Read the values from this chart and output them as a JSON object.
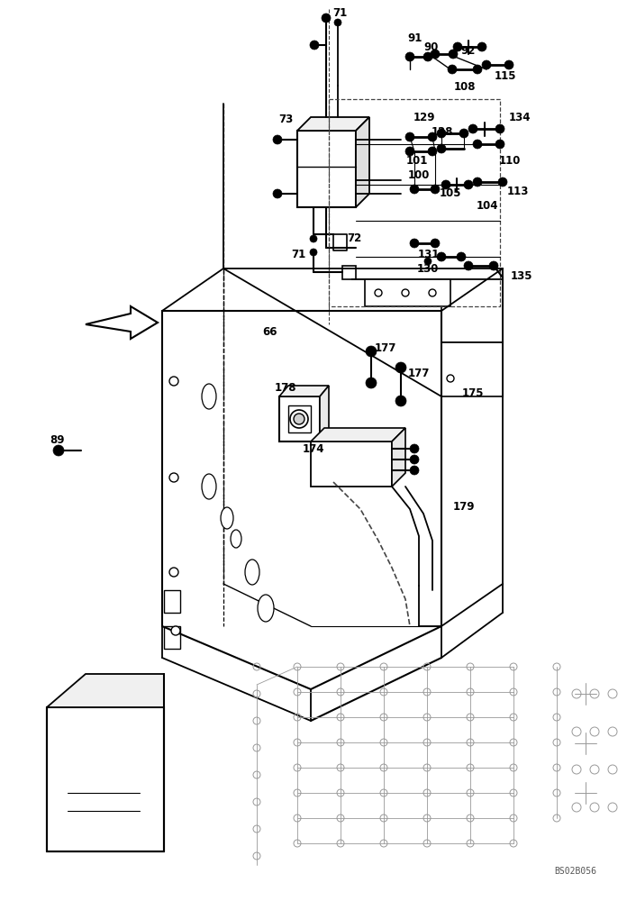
{
  "background_color": "#ffffff",
  "line_color": "#000000",
  "fig_width": 6.96,
  "fig_height": 10.0,
  "dpi": 100,
  "watermark": "BS02B056",
  "labels": [
    [
      369,
      15,
      "71"
    ],
    [
      452,
      42,
      "91"
    ],
    [
      470,
      53,
      "90"
    ],
    [
      511,
      57,
      "92"
    ],
    [
      549,
      85,
      "115"
    ],
    [
      504,
      97,
      "108"
    ],
    [
      309,
      133,
      "73"
    ],
    [
      459,
      131,
      "129"
    ],
    [
      479,
      147,
      "128"
    ],
    [
      565,
      131,
      "134"
    ],
    [
      451,
      179,
      "101"
    ],
    [
      453,
      194,
      "100"
    ],
    [
      554,
      179,
      "110"
    ],
    [
      488,
      214,
      "105"
    ],
    [
      529,
      228,
      "104"
    ],
    [
      563,
      213,
      "113"
    ],
    [
      385,
      264,
      "72"
    ],
    [
      323,
      282,
      "71"
    ],
    [
      464,
      283,
      "131"
    ],
    [
      463,
      299,
      "130"
    ],
    [
      567,
      307,
      "135"
    ],
    [
      291,
      369,
      "66"
    ],
    [
      416,
      387,
      "177"
    ],
    [
      453,
      414,
      "177"
    ],
    [
      305,
      431,
      "178"
    ],
    [
      513,
      436,
      "175"
    ],
    [
      336,
      499,
      "174"
    ],
    [
      503,
      563,
      "179"
    ],
    [
      55,
      489,
      "89"
    ]
  ]
}
